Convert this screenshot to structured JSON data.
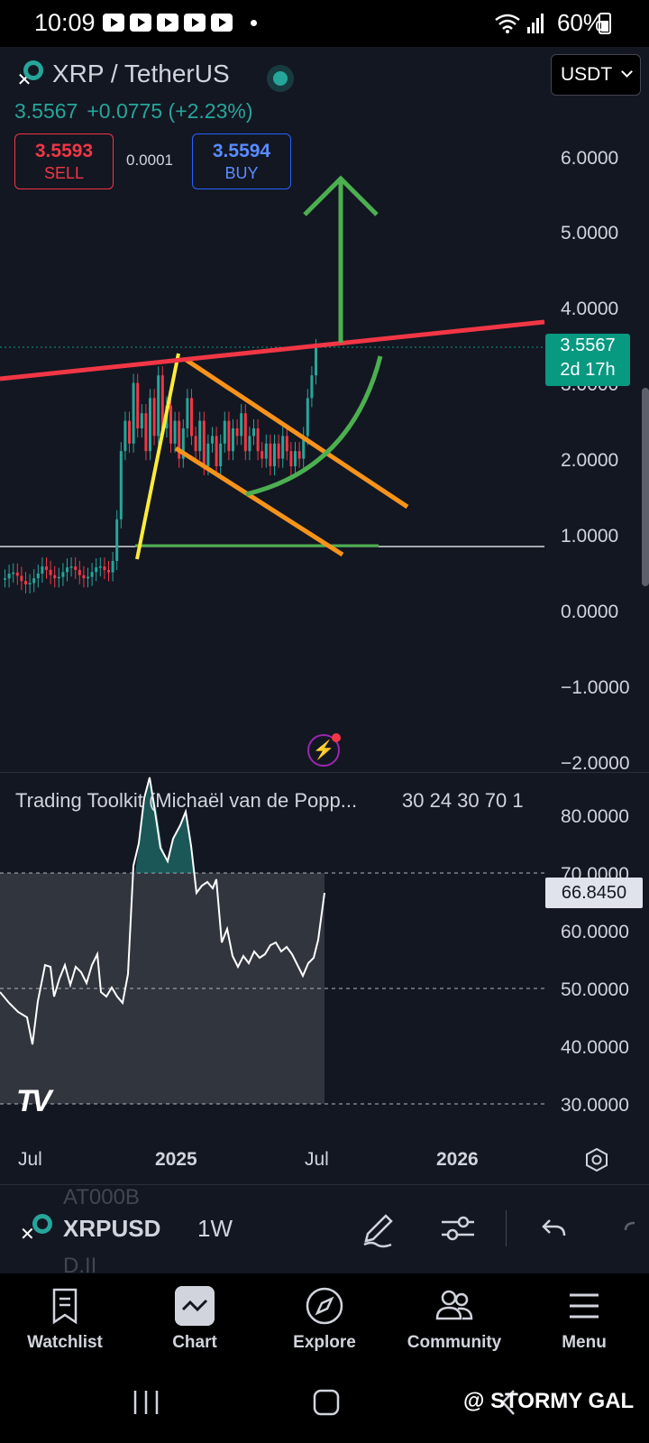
{
  "status_bar": {
    "time": "10:09",
    "battery": "60%"
  },
  "header": {
    "symbol": "XRP / TetherUS",
    "currency": "USDT",
    "price": "3.5567",
    "change": "+0.0775 (+2.23%)",
    "sell_price": "3.5593",
    "sell_label": "SELL",
    "spread": "0.0001",
    "buy_price": "3.5594",
    "buy_label": "BUY"
  },
  "price_axis": [
    "6.0000",
    "5.0000",
    "4.0000",
    "3.0000",
    "2.0000",
    "1.0000",
    "0.0000",
    "−1.0000",
    "−2.0000"
  ],
  "price_tag": {
    "price": "3.5567",
    "countdown": "2d 17h"
  },
  "indicator": {
    "title": "Trading Toolkit (Michaël van de Popp...",
    "params": "30 24 30 70 1",
    "axis": [
      "80.0000",
      "70.0000",
      "60.0000",
      "50.0000",
      "40.0000",
      "30.0000"
    ],
    "value": "66.8450"
  },
  "time_axis": [
    {
      "label": "Jul",
      "bold": false
    },
    {
      "label": "2025",
      "bold": true
    },
    {
      "label": "Jul",
      "bold": false
    },
    {
      "label": "2026",
      "bold": true
    }
  ],
  "toolbar": {
    "ghost_top": "AT000B",
    "symbol": "XRPUSD",
    "ghost_bottom": "D.II",
    "interval": "1W"
  },
  "nav": [
    {
      "label": "Watchlist",
      "icon": "watchlist-icon"
    },
    {
      "label": "Chart",
      "icon": "chart-icon",
      "active": true
    },
    {
      "label": "Explore",
      "icon": "compass-icon"
    },
    {
      "label": "Community",
      "icon": "community-icon"
    },
    {
      "label": "Menu",
      "icon": "menu-icon"
    }
  ],
  "watermark": "@ STORMY GAL",
  "colors": {
    "background": "#131722",
    "up": "#26a69a",
    "down": "#f23645",
    "resistance_line": "#f23645",
    "channel_lines": "#f7931a",
    "trend_line": "#ffeb3b",
    "projection": "#4caf50"
  }
}
